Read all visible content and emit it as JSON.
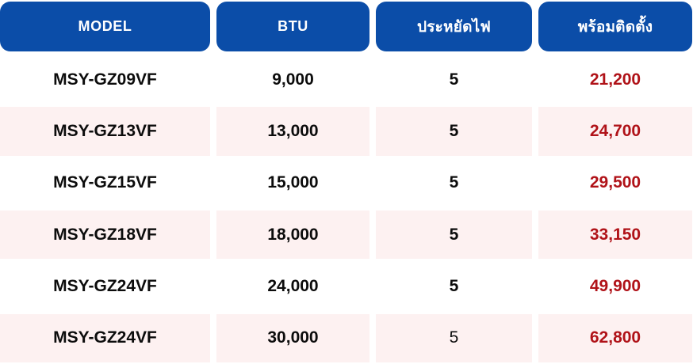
{
  "chart_data": {
    "type": "table",
    "title": "",
    "columns": [
      "MODEL",
      "BTU",
      "ประหยัดไฟ",
      "พร้อมติดตั้ง"
    ],
    "rows": [
      [
        "MSY-GZ09VF",
        "9,000",
        "5",
        "21,200"
      ],
      [
        "MSY-GZ13VF",
        "13,000",
        "5",
        "24,700"
      ],
      [
        "MSY-GZ15VF",
        "15,000",
        "5",
        "29,500"
      ],
      [
        "MSY-GZ18VF",
        "18,000",
        "5",
        "33,150"
      ],
      [
        "MSY-GZ24VF",
        "24,000",
        "5",
        "49,900"
      ],
      [
        "MSY-GZ24VF",
        "30,000",
        "5",
        "62,800"
      ]
    ],
    "layout": {
      "striped_rows": "even rows light pink",
      "header_style": "blue rounded pill cells, white text",
      "price_column_color": "dark red"
    }
  },
  "colors": {
    "header_bg": "#0b4da8",
    "header_text": "#ffffff",
    "row_alt_bg": "#fdf1f1",
    "body_text": "#0c0c0c",
    "price_text": "#b01218"
  }
}
